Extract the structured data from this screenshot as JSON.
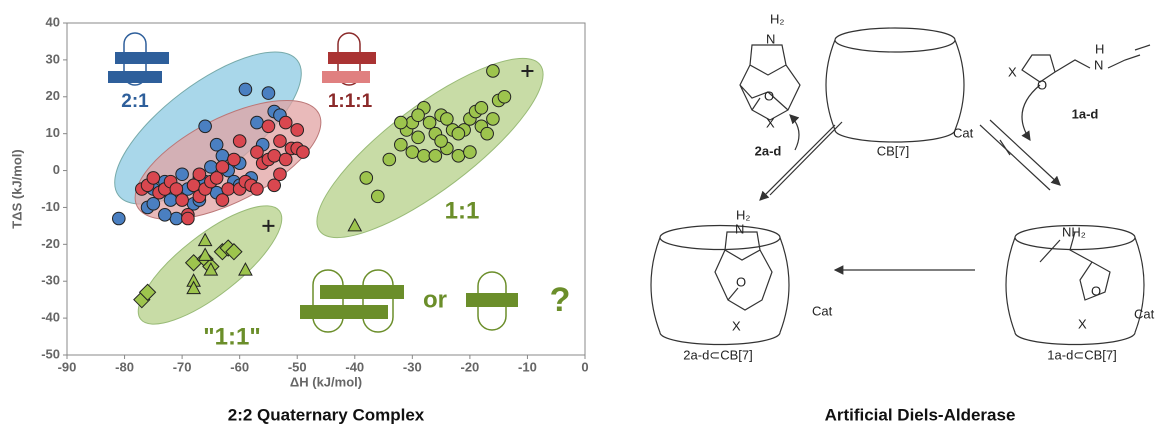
{
  "chart_data": {
    "type": "scatter",
    "title": "2:2 Quaternary Complex",
    "xlabel": "ΔH (kJ/mol)",
    "ylabel": "TΔS (kJ/mol)",
    "xlim": [
      -90,
      0
    ],
    "ylim": [
      -50,
      40
    ],
    "xticks": [
      -90,
      -80,
      -70,
      -60,
      -50,
      -40,
      -30,
      -20,
      -10,
      0
    ],
    "yticks": [
      -50,
      -40,
      -30,
      -20,
      -10,
      0,
      10,
      20,
      30,
      40
    ],
    "annotations": [
      "2:1",
      "1:1:1",
      "1:1",
      "\"1:1\"",
      "or",
      "?"
    ],
    "series": [
      {
        "color": "#4a7fc1",
        "marker": "circle",
        "x": [
          -81,
          -76,
          -75,
          -73,
          -72,
          -71,
          -70,
          -69,
          -68,
          -67,
          -66,
          -65,
          -64,
          -64,
          -63,
          -62,
          -61,
          -60,
          -59,
          -58,
          -57,
          -55,
          -54,
          -53,
          -56,
          -60,
          -66,
          -73,
          -75,
          -68,
          -67
        ],
        "values": [
          -13,
          -10,
          -5,
          -3,
          -8,
          -13,
          -1,
          -5,
          -9,
          -2,
          -3,
          1,
          -6,
          7,
          4,
          0,
          -3,
          -4,
          22,
          -2,
          13,
          21,
          16,
          15,
          7,
          2,
          12,
          -12,
          -9,
          -4,
          -8
        ]
      },
      {
        "color": "#d9474f",
        "marker": "circle",
        "x": [
          -77,
          -76,
          -75,
          -74,
          -73,
          -72,
          -71,
          -70,
          -69,
          -68,
          -67,
          -66,
          -65,
          -64,
          -63,
          -62,
          -61,
          -60,
          -59,
          -58,
          -57,
          -56,
          -55,
          -54,
          -53,
          -52,
          -51,
          -50,
          -49,
          -50,
          -55,
          -54,
          -52,
          -53,
          -60,
          -63,
          -57,
          -67,
          -69
        ],
        "values": [
          -5,
          -4,
          -2,
          -6,
          -5,
          -3,
          -5,
          -8,
          -12,
          -4,
          -7,
          -5,
          -3,
          -2,
          -8,
          -5,
          3,
          -5,
          -3,
          -4,
          5,
          2,
          3,
          -4,
          8,
          13,
          6,
          6,
          5,
          11,
          12,
          4,
          3,
          -1,
          8,
          1,
          -5,
          -1,
          -13
        ]
      },
      {
        "color": "#9dc44d",
        "marker": "circle",
        "x": [
          -38,
          -36,
          -34,
          -32,
          -31,
          -30,
          -29,
          -28,
          -27,
          -26,
          -25,
          -24,
          -23,
          -22,
          -21,
          -20,
          -19,
          -18,
          -17,
          -16,
          -15,
          -14,
          -16,
          -18,
          -22,
          -25,
          -28,
          -30,
          -32,
          -26,
          -20,
          -29,
          -24
        ],
        "values": [
          -2,
          -7,
          3,
          7,
          11,
          5,
          9,
          4,
          13,
          10,
          15,
          6,
          11,
          4,
          11,
          14,
          16,
          12,
          10,
          14,
          19,
          20,
          27,
          17,
          10,
          8,
          17,
          13,
          13,
          4,
          5,
          15,
          14
        ]
      },
      {
        "color": "#9dc44d",
        "marker": "diamond",
        "x": [
          -77,
          -76,
          -68,
          -66,
          -65,
          -63,
          -62,
          -61
        ],
        "values": [
          -35,
          -33,
          -25,
          -24,
          -26,
          -22,
          -21,
          -22
        ]
      },
      {
        "color": "#9dc44d",
        "marker": "triangle",
        "x": [
          -66,
          -66,
          -68,
          -68,
          -65,
          -59,
          -40
        ],
        "values": [
          -19,
          -23,
          -30,
          -32,
          -27,
          -27,
          -15
        ]
      },
      {
        "color": "#222222",
        "marker": "plus",
        "x": [
          -55,
          -10
        ],
        "values": [
          -15,
          27
        ]
      }
    ]
  },
  "diagram": {
    "title": "Artificial Diels-Alderase",
    "labels": [
      "H₂",
      "N",
      "O",
      "X",
      "2a-d",
      "X",
      "O",
      "H",
      "N",
      "1a-d",
      "CB[7]",
      "Cat",
      "H₂",
      "N",
      "O",
      "X",
      "Cat",
      "2a-d⊂CB[7]",
      "NH₂",
      "O",
      "X",
      "Cat",
      "1a-d⊂CB[7]"
    ]
  }
}
